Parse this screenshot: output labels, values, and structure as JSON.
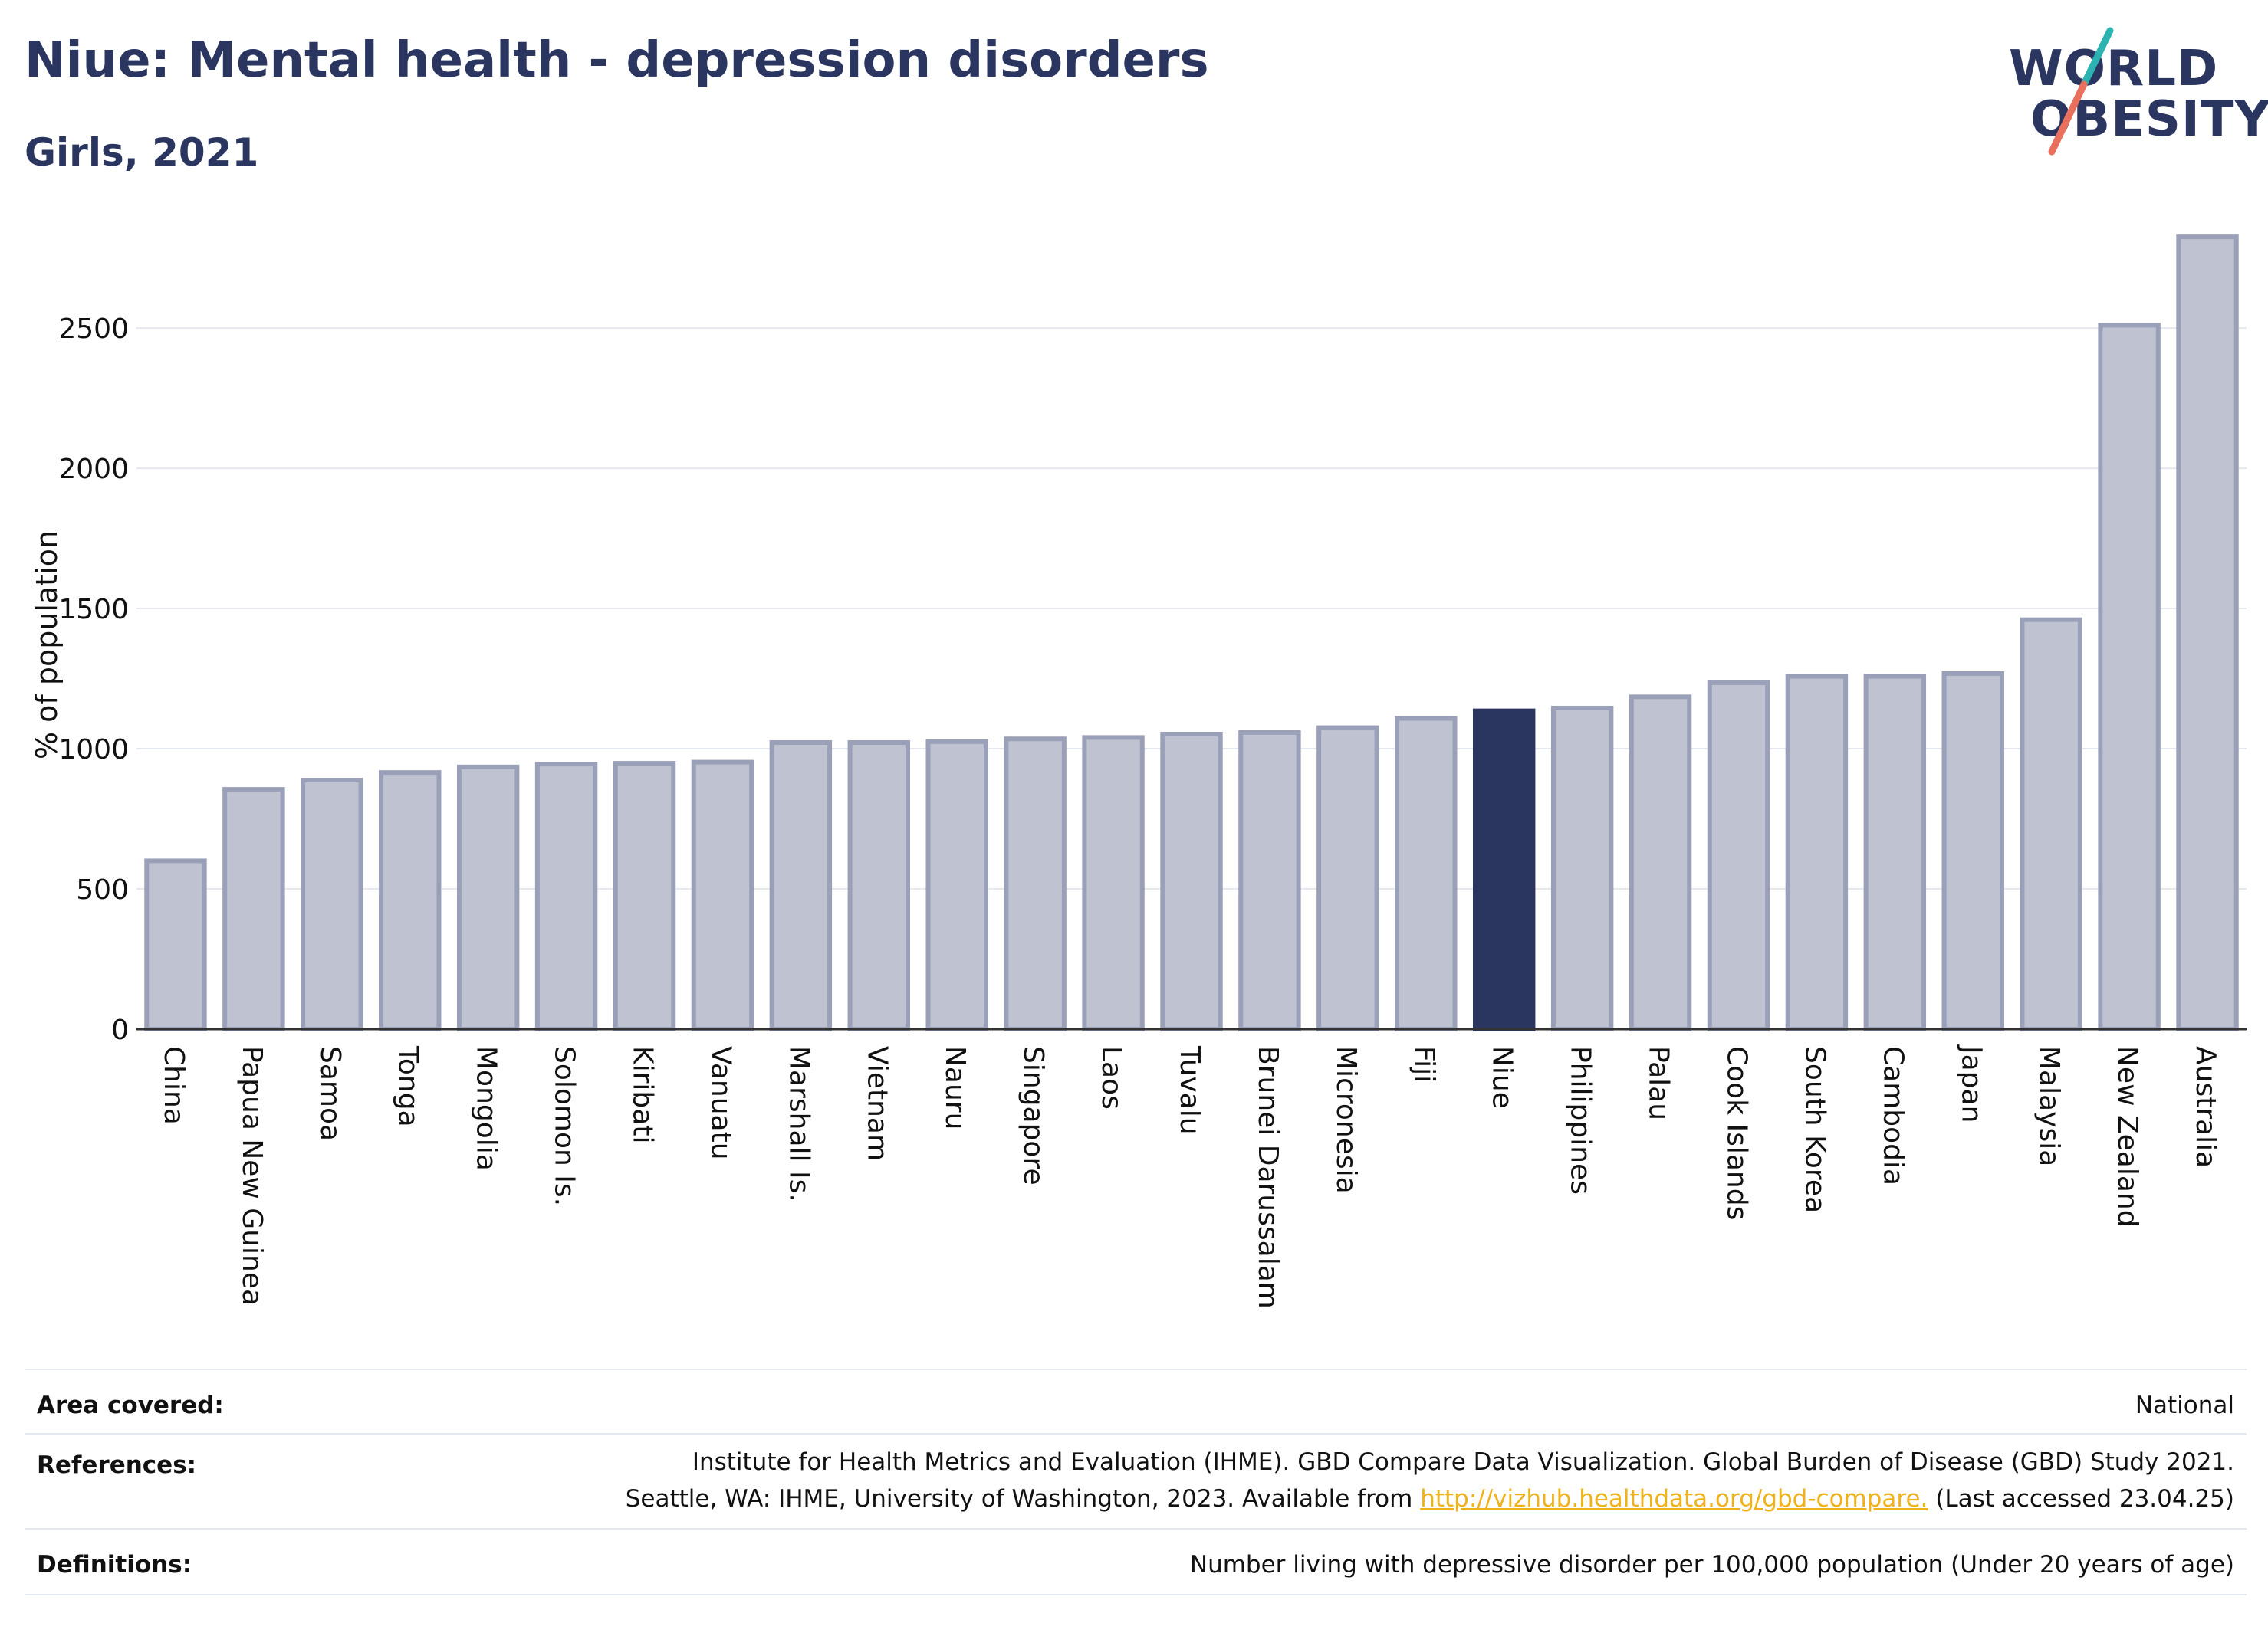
{
  "header": {
    "title": "Niue: Mental health - depression disorders",
    "subtitle": "Girls, 2021"
  },
  "logo": {
    "line1": "WORLD",
    "line2": "OBESITY",
    "colors": {
      "text": "#2a3560",
      "accent_teal": "#2bb3b1",
      "accent_coral": "#e8705c"
    }
  },
  "chart_data": {
    "type": "bar",
    "title": "Niue: Mental health - depression disorders",
    "subtitle": "Girls, 2021",
    "ylabel": "% of population",
    "xlabel": "",
    "ylim": [
      0,
      2850
    ],
    "yticks": [
      0,
      500,
      1000,
      1500,
      2000,
      2500
    ],
    "grid": true,
    "highlight": "Niue",
    "colors": {
      "bar": "#bfc3d1",
      "bar_border": "#9aa0b8",
      "highlight": "#2a3560",
      "grid": "#e6e8ef"
    },
    "categories": [
      "China",
      "Papua New Guinea",
      "Samoa",
      "Tonga",
      "Mongolia",
      "Solomon Is.",
      "Kiribati",
      "Vanuatu",
      "Marshall Is.",
      "Vietnam",
      "Nauru",
      "Singapore",
      "Laos",
      "Tuvalu",
      "Brunei Darussalam",
      "Micronesia",
      "Fiji",
      "Niue",
      "Philippines",
      "Palau",
      "Cook Islands",
      "South Korea",
      "Cambodia",
      "Japan",
      "Malaysia",
      "New Zealand",
      "Australia"
    ],
    "values": [
      600,
      855,
      888,
      915,
      935,
      945,
      948,
      952,
      1022,
      1022,
      1025,
      1035,
      1040,
      1052,
      1058,
      1075,
      1108,
      1135,
      1145,
      1185,
      1235,
      1258,
      1258,
      1268,
      1460,
      2510,
      2825
    ]
  },
  "footer": {
    "area_label": "Area covered:",
    "area_value": "National",
    "references_label": "References:",
    "references_line1": "Institute for Health Metrics and Evaluation (IHME). GBD Compare Data Visualization. Global Burden of Disease (GBD) Study 2021.",
    "references_line2_pre": "Seattle, WA: IHME, University of Washington, 2023. Available from ",
    "references_link": "http://vizhub.healthdata.org/gbd-compare.",
    "references_line2_post": " (Last accessed 23.04.25)",
    "definitions_label": "Definitions:",
    "definitions_value": "Number living with depressive disorder per 100,000 population (Under 20 years of age)"
  }
}
